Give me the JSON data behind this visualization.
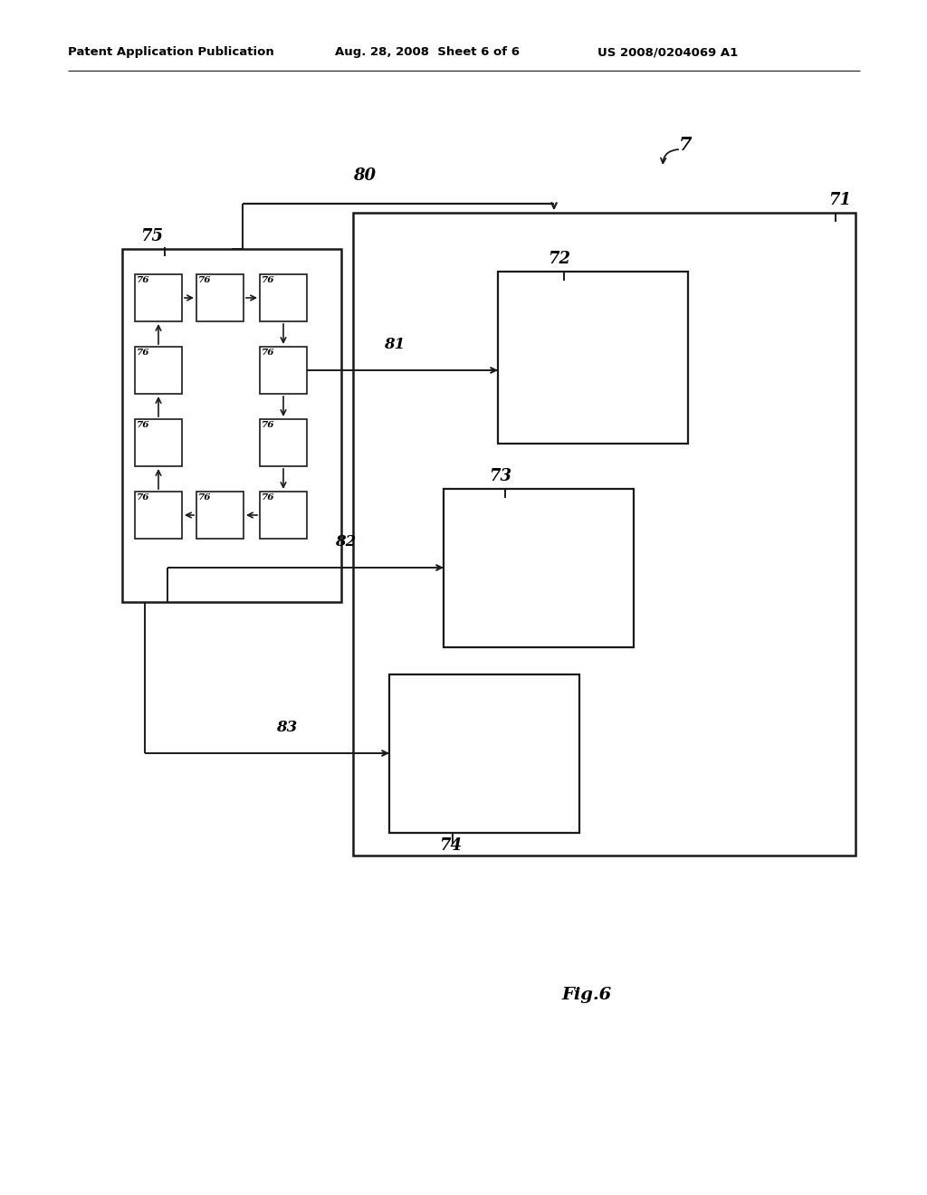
{
  "background_color": "#ffffff",
  "header_left": "Patent Application Publication",
  "header_mid": "Aug. 28, 2008  Sheet 6 of 6",
  "header_right": "US 2008/0204069 A1",
  "footer_label": "Fig.6",
  "label_7": "7",
  "label_71": "71",
  "label_72": "72",
  "label_73": "73",
  "label_74": "74",
  "label_75": "75",
  "label_76": "76",
  "label_80": "80",
  "label_81": "81",
  "label_82": "82",
  "label_83": "83",
  "lc": "#1a1a1a"
}
